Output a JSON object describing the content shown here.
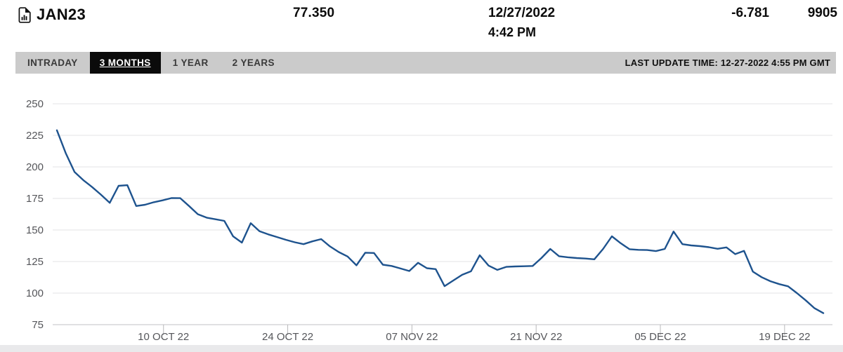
{
  "header": {
    "symbol": "JAN23",
    "symbol_icon": "chart-document-icon",
    "price": "77.350",
    "date": "12/27/2022",
    "time": "4:42 PM",
    "change": "-6.781",
    "volume": "9905"
  },
  "toolbar": {
    "tabs": [
      {
        "label": "INTRADAY",
        "selected": false
      },
      {
        "label": "3 MONTHS",
        "selected": true
      },
      {
        "label": "1 YEAR",
        "selected": false
      },
      {
        "label": "2 YEARS",
        "selected": false
      }
    ],
    "last_update": "LAST UPDATE TIME: 12-27-2022 4:55 PM GMT"
  },
  "chart_data": {
    "type": "line",
    "title": "",
    "xlabel": "",
    "ylabel": "",
    "grid": true,
    "legend": false,
    "ylim": [
      75,
      250
    ],
    "yticks": [
      250,
      225,
      200,
      175,
      150,
      125,
      100,
      75
    ],
    "xtick_labels": [
      "10 OCT 22",
      "24 OCT 22",
      "07 NOV 22",
      "21 NOV 22",
      "05 DEC 22",
      "19 DEC 22"
    ],
    "xtick_indices": [
      12.1,
      26.2,
      40.3,
      54.4,
      68.5,
      82.6
    ],
    "values": [
      229,
      211,
      196,
      189.5,
      184,
      178,
      171.5,
      185,
      185.5,
      169,
      170,
      172,
      173.5,
      175.3,
      175.2,
      169,
      162.5,
      159.8,
      158.5,
      157.2,
      145,
      140,
      155.4,
      149,
      146.5,
      144.4,
      142.2,
      140.3,
      138.8,
      141,
      142.8,
      137,
      132.5,
      129,
      122,
      132,
      131.8,
      122.5,
      121.5,
      119.5,
      117.5,
      124,
      119.7,
      119,
      105.5,
      110,
      114.5,
      117.3,
      130,
      121.8,
      118.4,
      120.8,
      121.1,
      121.3,
      121.5,
      127.8,
      135,
      129.2,
      128.4,
      127.8,
      127.4,
      126.8,
      135,
      145,
      139.5,
      134.8,
      134.3,
      134.1,
      133.3,
      135,
      148.8,
      138.8,
      137.8,
      137.2,
      136.4,
      135.1,
      136.2,
      130.9,
      133.5,
      117,
      112.6,
      109.4,
      107.1,
      105.4,
      100,
      94.3,
      88,
      84.1
    ],
    "last_value": 84.1,
    "first_value": 229
  },
  "colors": {
    "line": "#1e538e",
    "grid": "#e3e3e5",
    "axis": "#c2c2c4",
    "tick": "#b9b9bb",
    "axis_label": "#55565a",
    "bottom_strip": "#e9e9eb",
    "tabbar_bg": "#cbcbcb",
    "selected_tab_bg": "#0b0b0b",
    "selected_tab_text": "#ffffff"
  }
}
